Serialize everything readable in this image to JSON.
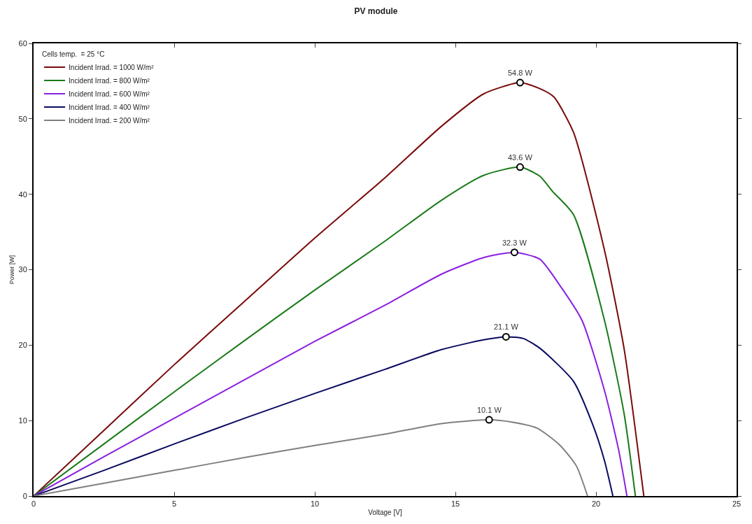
{
  "chart_data": {
    "type": "line",
    "title": "PV module",
    "xlabel": "Voltage [V]",
    "ylabel": "Power [W]",
    "legend_title": "Cells temp.  = 25 °C",
    "xlim": [
      0,
      25
    ],
    "xticks": [
      0,
      5,
      10,
      15,
      20,
      25
    ],
    "ylim": [
      0,
      60
    ],
    "yticks": [
      0,
      10,
      20,
      30,
      40,
      50,
      60
    ],
    "grid": false,
    "legend": "top left",
    "marker": "none",
    "line_style": "solid",
    "series": [
      {
        "name": "Incident Irrad. = 1000 W/m²",
        "color": "#7a0a0a",
        "x": [
          0,
          2.5,
          5,
          7.5,
          10,
          12.5,
          14.5,
          16,
          17.3,
          18,
          18.5,
          19.2,
          20.3,
          21,
          21.7
        ],
        "values": [
          0,
          8.7,
          17.4,
          25.8,
          34.2,
          42.2,
          49.0,
          53.3,
          54.8,
          54.0,
          52.9,
          48.2,
          32.6,
          19.5,
          0
        ]
      },
      {
        "name": "Incident Irrad. = 800 W/m²",
        "color": "#1a7a1a",
        "x": [
          0,
          2.5,
          5,
          7.5,
          10,
          12.5,
          14.5,
          16,
          17.3,
          18,
          18.45,
          19.2,
          20.3,
          21.0,
          21.4
        ],
        "values": [
          0,
          6.9,
          13.8,
          20.6,
          27.3,
          33.8,
          39.2,
          42.5,
          43.6,
          42.4,
          40.4,
          37.3,
          23.3,
          10.9,
          0
        ]
      },
      {
        "name": "Incident Irrad. = 600 W/m²",
        "color": "#8b20e0",
        "x": [
          0,
          2.5,
          5,
          7.5,
          10,
          12.5,
          14.5,
          16,
          17.1,
          18,
          18.7,
          19.5,
          20.3,
          20.8,
          21.1
        ],
        "values": [
          0,
          5.2,
          10.3,
          15.4,
          20.5,
          25.3,
          29.4,
          31.6,
          32.3,
          31.4,
          28.0,
          23.3,
          14.0,
          6.2,
          0
        ]
      },
      {
        "name": "Incident Irrad. = 400 W/m²",
        "color": "#0a0a60",
        "x": [
          0,
          2.5,
          5,
          7.5,
          10,
          12.5,
          14.5,
          16,
          16.8,
          17.4,
          18.0,
          19.2,
          19.9,
          20.3,
          20.6
        ],
        "values": [
          0,
          3.4,
          6.9,
          10.3,
          13.6,
          16.8,
          19.4,
          20.7,
          21.1,
          20.9,
          19.6,
          15.2,
          9.3,
          4.7,
          0
        ]
      },
      {
        "name": "Incident Irrad. = 200 W/m²",
        "color": "#808080",
        "x": [
          0,
          2.5,
          5,
          7.5,
          10,
          12.5,
          14.5,
          16.2,
          17.0,
          17.9,
          18.7,
          19.3,
          19.7
        ],
        "values": [
          0,
          1.7,
          3.4,
          5.1,
          6.7,
          8.2,
          9.6,
          10.1,
          9.8,
          9.0,
          6.8,
          4.0,
          0
        ]
      }
    ],
    "annotations": [
      {
        "text": "54.8 W",
        "x": 17.3,
        "y": 54.8
      },
      {
        "text": "43.6 W",
        "x": 17.3,
        "y": 43.6
      },
      {
        "text": "32.3 W",
        "x": 17.1,
        "y": 32.3
      },
      {
        "text": "21.1 W",
        "x": 16.8,
        "y": 21.1
      },
      {
        "text": "10.1 W",
        "x": 16.2,
        "y": 10.1
      }
    ]
  }
}
